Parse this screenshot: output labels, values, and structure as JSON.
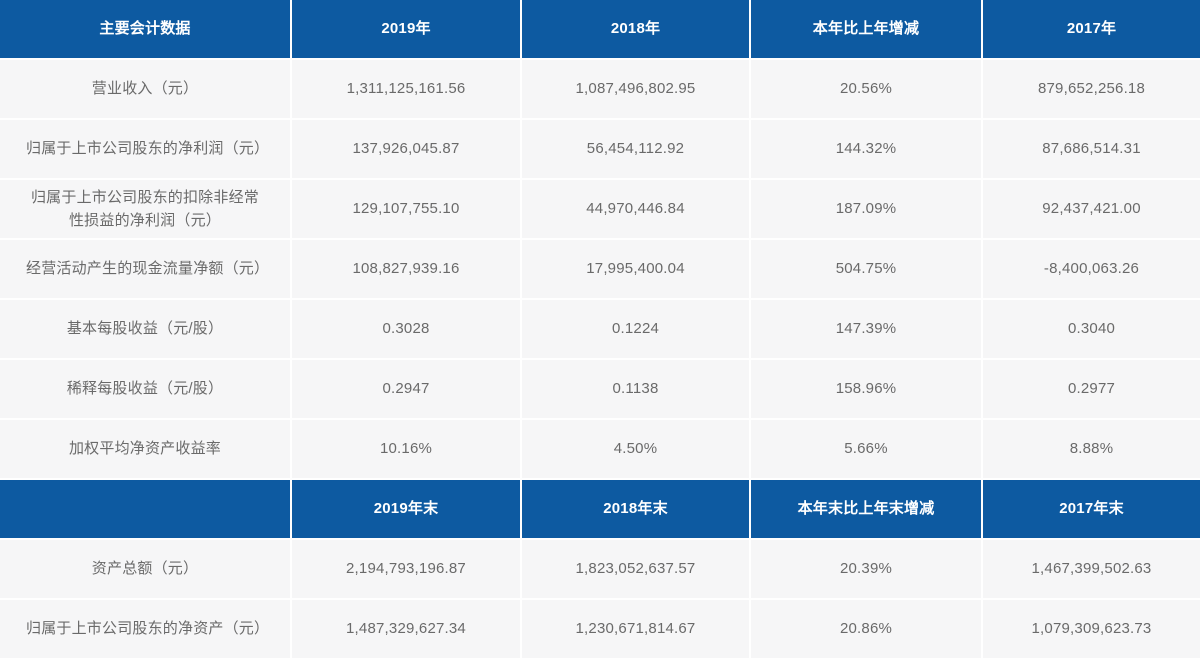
{
  "table": {
    "accent_color": "#0d5aa1",
    "cell_background": "#f6f6f7",
    "body_text_color": "#6a6a6a",
    "header_text_color": "#ffffff",
    "rows": [
      {
        "type": "header",
        "cells": [
          "主要会计数据",
          "2019年",
          "2018年",
          "本年比上年增减",
          "2017年"
        ]
      },
      {
        "type": "data",
        "cells": [
          "营业收入（元）",
          "1,311,125,161.56",
          "1,087,496,802.95",
          "20.56%",
          "879,652,256.18"
        ]
      },
      {
        "type": "data",
        "cells": [
          "归属于上市公司股东的净利润（元）",
          "137,926,045.87",
          "56,454,112.92",
          "144.32%",
          "87,686,514.31"
        ]
      },
      {
        "type": "data",
        "cells": [
          "归属于上市公司股东的扣除非经常性损益的净利润（元）",
          "129,107,755.10",
          "44,970,446.84",
          "187.09%",
          "92,437,421.00"
        ]
      },
      {
        "type": "data",
        "cells": [
          "经营活动产生的现金流量净额（元）",
          "108,827,939.16",
          "17,995,400.04",
          "504.75%",
          "-8,400,063.26"
        ]
      },
      {
        "type": "data",
        "cells": [
          "基本每股收益（元/股）",
          "0.3028",
          "0.1224",
          "147.39%",
          "0.3040"
        ]
      },
      {
        "type": "data",
        "cells": [
          "稀释每股收益（元/股）",
          "0.2947",
          "0.1138",
          "158.96%",
          "0.2977"
        ]
      },
      {
        "type": "data",
        "cells": [
          "加权平均净资产收益率",
          "10.16%",
          "4.50%",
          "5.66%",
          "8.88%"
        ]
      },
      {
        "type": "header",
        "cells": [
          "",
          "2019年末",
          "2018年末",
          "本年末比上年末增减",
          "2017年末"
        ]
      },
      {
        "type": "data",
        "cells": [
          "资产总额（元）",
          "2,194,793,196.87",
          "1,823,052,637.57",
          "20.39%",
          "1,467,399,502.63"
        ]
      },
      {
        "type": "data",
        "cells": [
          "归属于上市公司股东的净资产（元）",
          "1,487,329,627.34",
          "1,230,671,814.67",
          "20.86%",
          "1,079,309,623.73"
        ]
      }
    ]
  }
}
